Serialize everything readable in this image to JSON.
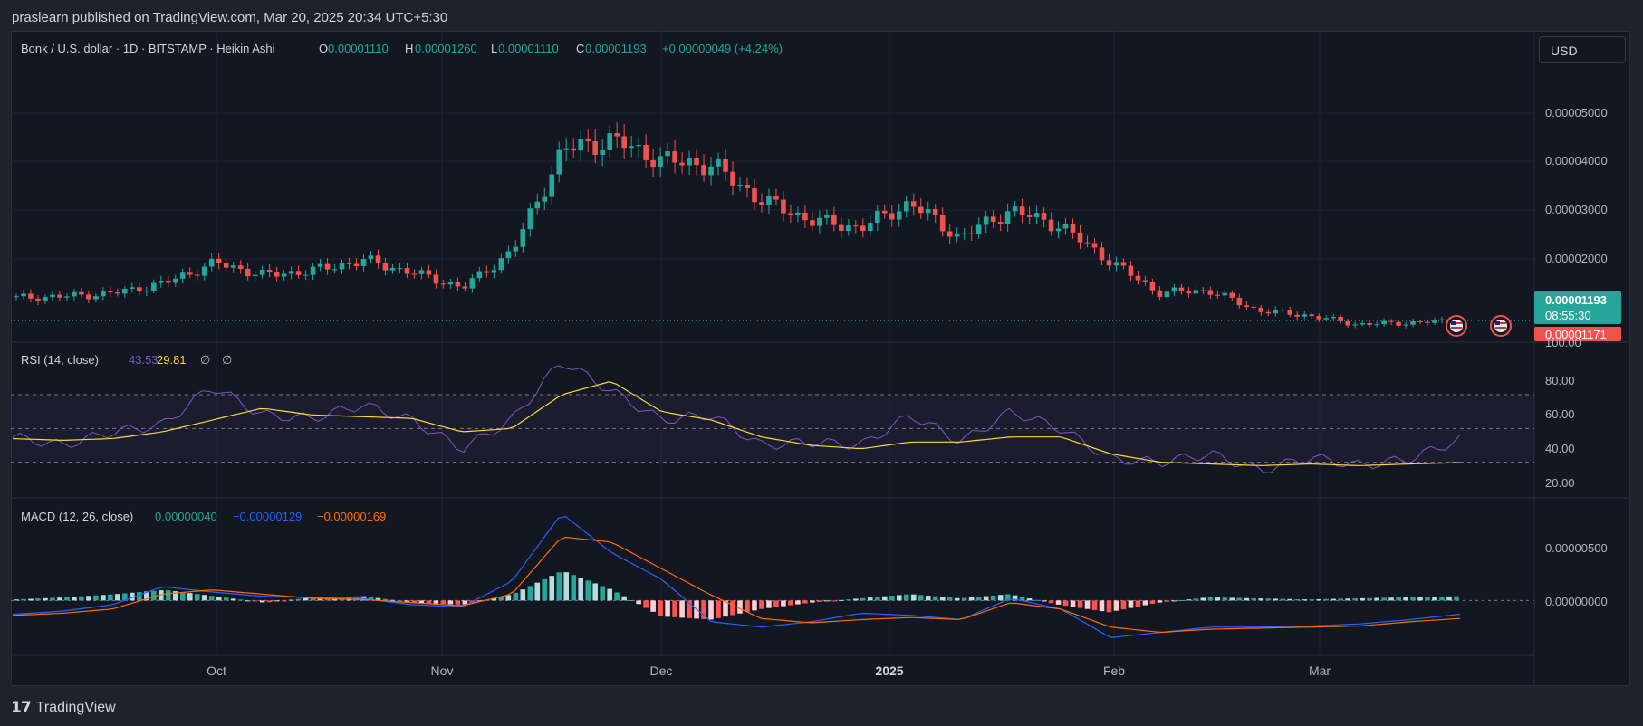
{
  "header": {
    "published": "praslearn published on TradingView.com, Mar 20, 2025 20:34 UTC+5:30"
  },
  "footer": {
    "brand": "TradingView"
  },
  "currency_button": "USD",
  "legend": {
    "symbol": "Bonk / U.S. dollar · 1D · BITSTAMP · Heikin Ashi",
    "o_label": "O",
    "o_value": "0.00001110",
    "h_label": "H",
    "h_value": "0.00001260",
    "l_label": "L",
    "l_value": "0.00001110",
    "c_label": "C",
    "c_value": "0.00001193",
    "change": "+0.00000049 (+4.24%)"
  },
  "price_scale": {
    "ticks": [
      "0.00005000",
      "0.00004000",
      "0.00003000",
      "0.00002000"
    ],
    "current_price": "0.00001193",
    "countdown": "08:55:30",
    "low_marker": "0.00001171"
  },
  "rsi": {
    "label": "RSI (14, close)",
    "value": "43.53",
    "ma_value": "29.81",
    "icons": [
      "∅",
      "∅"
    ],
    "ticks": [
      "100.00",
      "80.00",
      "60.00",
      "40.00",
      "20.00"
    ]
  },
  "macd": {
    "label": "MACD (12, 26, close)",
    "histogram_value": "0.00000040",
    "macd_value": "−0.00000129",
    "signal_value": "−0.00000169",
    "ticks": [
      "0.00000500",
      "0.00000000"
    ]
  },
  "x_axis": {
    "labels": [
      {
        "text": "Oct",
        "bold": false
      },
      {
        "text": "Nov",
        "bold": false
      },
      {
        "text": "Dec",
        "bold": false
      },
      {
        "text": "2025",
        "bold": true
      },
      {
        "text": "Feb",
        "bold": false
      },
      {
        "text": "Mar",
        "bold": false
      }
    ]
  },
  "colors": {
    "up": "#26a69a",
    "down": "#ef5350",
    "rsi_line": "#7e57c2",
    "rsi_ma": "#fdd835",
    "macd_line": "#2962ff",
    "signal_line": "#ff6d00",
    "background": "#131722"
  },
  "chart_data": [
    {
      "type": "line",
      "chart_style": "heikin-ashi candlestick",
      "title": "Bonk / U.S. dollar · 1D · BITSTAMP · Heikin Ashi",
      "ylim": [
        8e-06,
        6.3e-05
      ],
      "y_ticks": [
        5e-05,
        4e-05,
        3e-05,
        2e-05
      ],
      "x": [
        "2024-09-01",
        "2024-09-08",
        "2024-09-15",
        "2024-09-22",
        "2024-09-29",
        "2024-10-06",
        "2024-10-13",
        "2024-10-20",
        "2024-10-27",
        "2024-11-03",
        "2024-11-10",
        "2024-11-17",
        "2024-11-24",
        "2024-12-01",
        "2024-12-08",
        "2024-12-15",
        "2024-12-22",
        "2024-12-29",
        "2025-01-05",
        "2025-01-12",
        "2025-01-19",
        "2025-01-26",
        "2025-02-02",
        "2025-02-09",
        "2025-02-16",
        "2025-02-23",
        "2025-03-02",
        "2025-03-09",
        "2025-03-16",
        "2025-03-20"
      ],
      "series": [
        {
          "values": [
            1.65e-05,
            1.68e-05,
            1.75e-05,
            1.95e-05,
            2.35e-05,
            2.1e-05,
            2.2e-05,
            2.4e-05,
            2.15e-05,
            1.85e-05,
            2.6e-05,
            4.6e-05,
            4.8e-05,
            4.4e-05,
            4.3e-05,
            3.6e-05,
            3.2e-05,
            3.05e-05,
            3.55e-05,
            2.85e-05,
            3.4e-05,
            3.1e-05,
            2.4e-05,
            1.75e-05,
            1.8e-05,
            1.4e-05,
            1.3e-05,
            1.12e-05,
            1.15e-05,
            1.19e-05
          ]
        }
      ],
      "last_close": 1.193e-05,
      "grid": true
    },
    {
      "type": "line",
      "title": "RSI (14, close)",
      "ylim": [
        10,
        100
      ],
      "y_ticks": [
        100,
        80,
        60,
        40,
        20
      ],
      "bands": [
        70,
        50,
        30
      ],
      "series": [
        {
          "values": [
            45,
            40,
            48,
            52,
            75,
            58,
            56,
            64,
            55,
            38,
            55,
            90,
            72,
            55,
            58,
            40,
            42,
            40,
            58,
            42,
            60,
            50,
            32,
            30,
            35,
            25,
            33,
            28,
            32,
            43.53
          ]
        },
        {
          "values": [
            44,
            43,
            44,
            48,
            55,
            62,
            58,
            57,
            56,
            48,
            50,
            70,
            78,
            60,
            55,
            45,
            40,
            38,
            42,
            42,
            45,
            45,
            35,
            30,
            29,
            28,
            29,
            28,
            29,
            29.81
          ]
        }
      ]
    },
    {
      "type": "bar",
      "title": "MACD (12, 26, close)",
      "ylim": [
        -5e-06,
        9.5e-06
      ],
      "y_ticks": [
        5e-06,
        0
      ],
      "series": [
        {
          "values": [
            1e-07,
            3e-07,
            6e-07,
            1e-06,
            4e-07,
            -2e-07,
            3e-07,
            4e-07,
            -2e-07,
            -4e-07,
            6e-07,
            2.8e-06,
            1e-06,
            -1.5e-06,
            -1.8e-06,
            -8e-07,
            -2e-07,
            2e-07,
            6e-07,
            2e-07,
            6e-07,
            -4e-07,
            -1.1e-06,
            -2e-07,
            3e-07,
            2e-07,
            1e-07,
            2e-07,
            3e-07,
            4e-07
          ]
        },
        {
          "values": [
            -1.3e-06,
            -1e-06,
            -4e-07,
            1.3e-06,
            8e-07,
            4e-07,
            3e-07,
            2e-07,
            -4e-07,
            -6e-07,
            1.8e-06,
            8.2e-06,
            4.5e-06,
            2e-06,
            -2e-06,
            -2.5e-06,
            -2e-06,
            -1.2e-06,
            -1.4e-06,
            -1.8e-06,
            2e-07,
            -8e-07,
            -3.5e-06,
            -3e-06,
            -2.5e-06,
            -2.5e-06,
            -2.4e-06,
            -2.2e-06,
            -1.8e-06,
            -1.29e-06
          ]
        },
        {
          "values": [
            -1.4e-06,
            -1.2e-06,
            -8e-07,
            6e-07,
            1e-06,
            6e-07,
            2e-07,
            1e-07,
            -2e-07,
            -5e-07,
            6e-07,
            6e-06,
            5.5e-06,
            3e-06,
            5e-07,
            -1.7e-06,
            -2.1e-06,
            -1.8e-06,
            -1.6e-06,
            -1.8e-06,
            -2e-07,
            -8e-07,
            -2.5e-06,
            -3e-06,
            -2.7e-06,
            -2.6e-06,
            -2.5e-06,
            -2.4e-06,
            -2e-06,
            -1.69e-06
          ]
        }
      ]
    }
  ]
}
